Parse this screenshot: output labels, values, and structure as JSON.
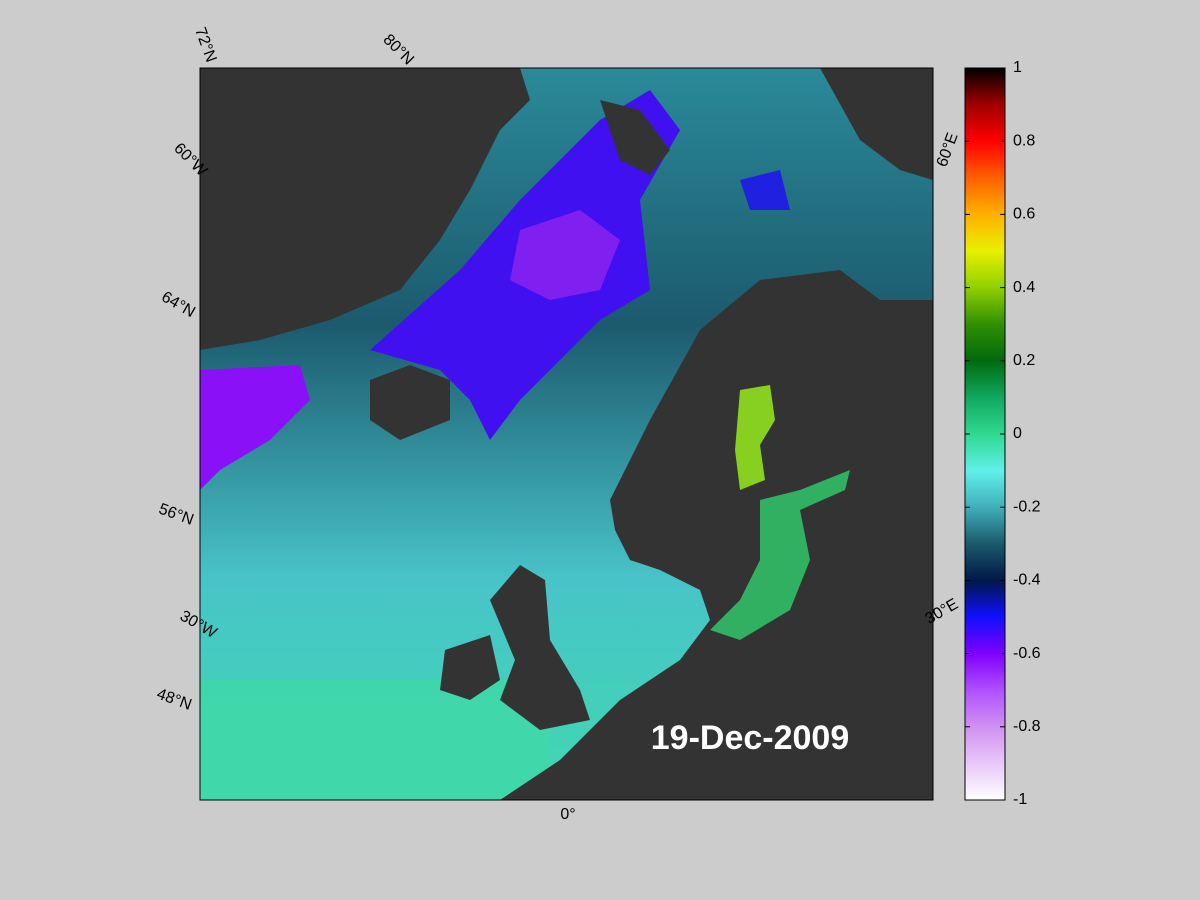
{
  "map": {
    "date_label": "19-Dec-2009",
    "grid_labels": [
      "72°N",
      "80°N",
      "60°W",
      "64°N",
      "56°N",
      "30°W",
      "48°N",
      "0°",
      "60°E",
      "30°E"
    ],
    "colorbar": {
      "lim": [
        -1,
        1
      ],
      "ticks": [
        -1,
        -0.8,
        -0.6,
        -0.4,
        -0.2,
        0,
        0.2,
        0.4,
        0.6,
        0.8,
        1
      ],
      "colors": [
        "#ffffff",
        "#e8c8f8",
        "#d090f0",
        "#b050ff",
        "#8000ff",
        "#1010ff",
        "#001848",
        "#1a5a6a",
        "#40b0b8",
        "#60f0e8",
        "#30d890",
        "#10a860",
        "#006a10",
        "#309000",
        "#90d000",
        "#e8f000",
        "#ffb000",
        "#ff6000",
        "#ff0000",
        "#a00000",
        "#000000"
      ]
    }
  }
}
